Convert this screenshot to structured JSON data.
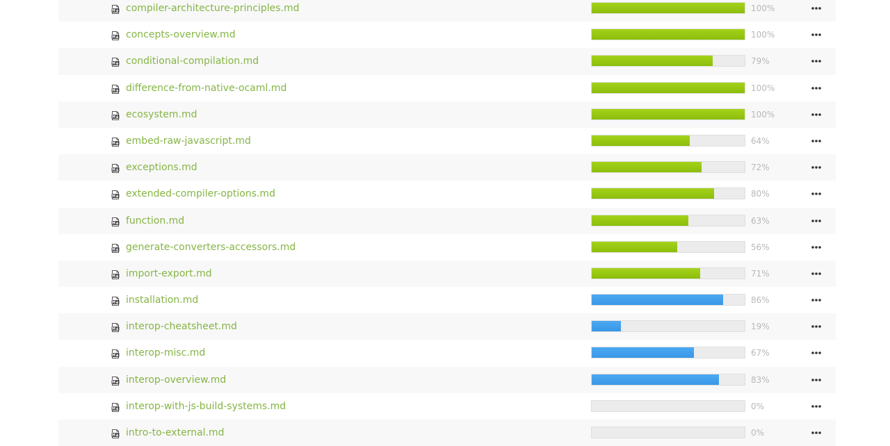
{
  "files": [
    {
      "name": "compiler-architecture-principles.md",
      "percent_label": "100%",
      "progress": 100,
      "color": "#96c711"
    },
    {
      "name": "concepts-overview.md",
      "percent_label": "100%",
      "progress": 100,
      "color": "#96c711"
    },
    {
      "name": "conditional-compilation.md",
      "percent_label": "79%",
      "progress": 79,
      "color": "#96c711"
    },
    {
      "name": "difference-from-native-ocaml.md",
      "percent_label": "100%",
      "progress": 100,
      "color": "#96c711"
    },
    {
      "name": "ecosystem.md",
      "percent_label": "100%",
      "progress": 100,
      "color": "#96c711"
    },
    {
      "name": "embed-raw-javascript.md",
      "percent_label": "64%",
      "progress": 64,
      "color": "#96c711"
    },
    {
      "name": "exceptions.md",
      "percent_label": "72%",
      "progress": 72,
      "color": "#96c711"
    },
    {
      "name": "extended-compiler-options.md",
      "percent_label": "80%",
      "progress": 80,
      "color": "#96c711"
    },
    {
      "name": "function.md",
      "percent_label": "63%",
      "progress": 63,
      "color": "#96c711"
    },
    {
      "name": "generate-converters-accessors.md",
      "percent_label": "56%",
      "progress": 56,
      "color": "#96c711"
    },
    {
      "name": "import-export.md",
      "percent_label": "71%",
      "progress": 71,
      "color": "#96c711"
    },
    {
      "name": "installation.md",
      "percent_label": "86%",
      "progress": 86,
      "color": "#43a0ee"
    },
    {
      "name": "interop-cheatsheet.md",
      "percent_label": "19%",
      "progress": 19,
      "color": "#43a0ee"
    },
    {
      "name": "interop-misc.md",
      "percent_label": "67%",
      "progress": 67,
      "color": "#43a0ee"
    },
    {
      "name": "interop-overview.md",
      "percent_label": "83%",
      "progress": 83,
      "color": "#43a0ee"
    },
    {
      "name": "interop-with-js-build-systems.md",
      "percent_label": "0%",
      "progress": 0,
      "color": "#43a0ee"
    },
    {
      "name": "intro-to-external.md",
      "percent_label": "0%",
      "progress": 0,
      "color": "#43a0ee"
    }
  ],
  "icons": {
    "file": "markdown-file-icon",
    "more": "more-options-icon"
  }
}
